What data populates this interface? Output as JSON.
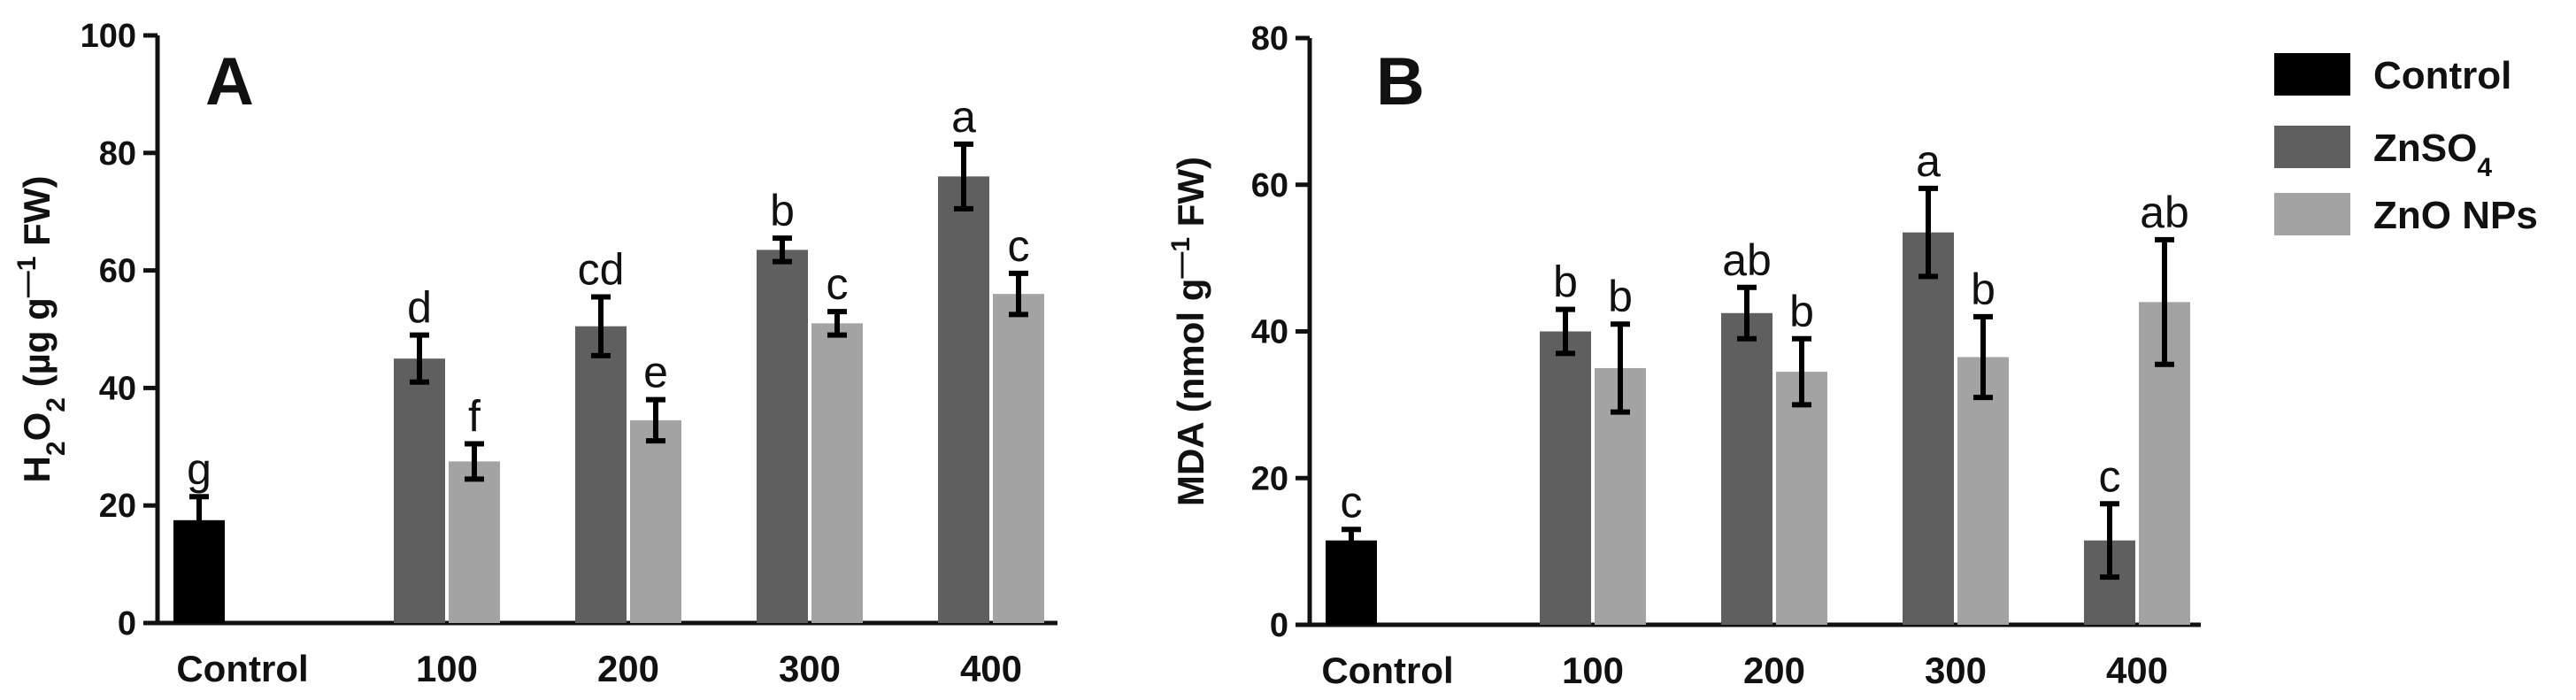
{
  "colors": {
    "Control": "#000000",
    "ZnSO4": "#5f5f5f",
    "ZnO NPs": "#a3a3a3",
    "axis": "#111111"
  },
  "legend": {
    "items": [
      {
        "key": "Control",
        "label": "Control",
        "sub": ""
      },
      {
        "key": "ZnSO4",
        "label": "ZnSO",
        "sub": "4"
      },
      {
        "key": "ZnO NPs",
        "label": "ZnO NPs",
        "sub": ""
      }
    ]
  },
  "chart_data": [
    {
      "type": "bar",
      "panel_label": "A",
      "title": "",
      "ylabel": {
        "prefix": "H",
        "sub1": "2",
        "mid": "O",
        "sub2": "2",
        "text": " (µg g",
        "sup": "—1",
        "suffix": " FW)"
      },
      "xlabel": "",
      "ylim": [
        0,
        100
      ],
      "yticks": [
        0,
        20,
        40,
        60,
        80,
        100
      ],
      "categories": [
        "Control",
        "100",
        "200",
        "300",
        "400"
      ],
      "series": [
        {
          "name": "Control",
          "values": [
            17.5,
            null,
            null,
            null,
            null
          ],
          "errors": [
            4.0,
            null,
            null,
            null,
            null
          ],
          "letters": [
            "g",
            "",
            "",
            "",
            ""
          ]
        },
        {
          "name": "ZnSO4",
          "values": [
            null,
            45,
            50.5,
            63.5,
            76
          ],
          "errors": [
            null,
            4.0,
            5.0,
            2.0,
            5.5
          ],
          "letters": [
            "",
            "d",
            "cd",
            "b",
            "a"
          ]
        },
        {
          "name": "ZnO NPs",
          "values": [
            null,
            27.5,
            34.5,
            51,
            56
          ],
          "errors": [
            null,
            3.0,
            3.5,
            2.0,
            3.5
          ],
          "letters": [
            "",
            "f",
            "e",
            "c",
            "c"
          ]
        }
      ]
    },
    {
      "type": "bar",
      "panel_label": "B",
      "title": "",
      "ylabel": {
        "prefix": "MDA",
        "sub1": "",
        "mid": "",
        "sub2": "",
        "text": " (nmol g",
        "sup": "—1",
        "suffix": " FW)"
      },
      "xlabel": "",
      "ylim": [
        0,
        80
      ],
      "yticks": [
        0,
        20,
        40,
        60,
        80
      ],
      "categories": [
        "Control",
        "100",
        "200",
        "300",
        "400"
      ],
      "series": [
        {
          "name": "Control",
          "values": [
            11.5,
            null,
            null,
            null,
            null
          ],
          "errors": [
            1.5,
            null,
            null,
            null,
            null
          ],
          "letters": [
            "c",
            "",
            "",
            "",
            ""
          ]
        },
        {
          "name": "ZnSO4",
          "values": [
            null,
            40,
            42.5,
            53.5,
            11.5
          ],
          "errors": [
            null,
            3.0,
            3.5,
            6.0,
            5.0
          ],
          "letters": [
            "",
            "b",
            "ab",
            "a",
            "c"
          ]
        },
        {
          "name": "ZnO NPs",
          "values": [
            null,
            35,
            34.5,
            36.5,
            44
          ],
          "errors": [
            null,
            6.0,
            4.5,
            5.5,
            8.5
          ],
          "letters": [
            "",
            "b",
            "b",
            "b",
            "ab"
          ]
        }
      ]
    }
  ]
}
